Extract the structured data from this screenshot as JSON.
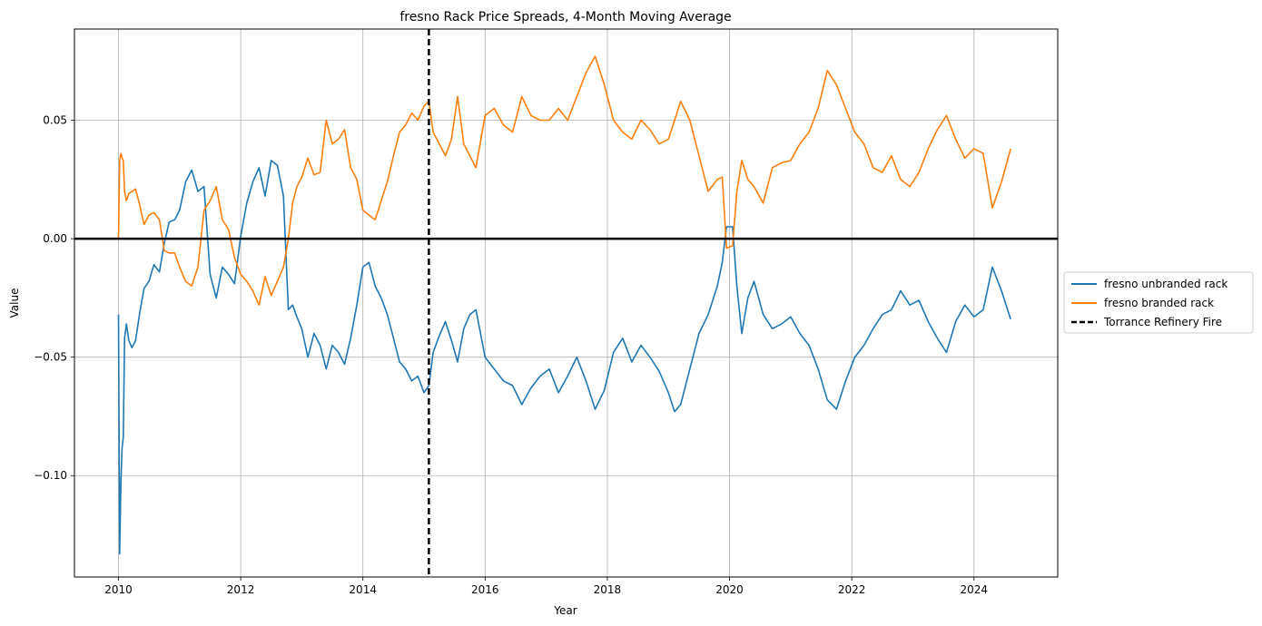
{
  "chart_data": {
    "type": "line",
    "title": "fresno Rack Price Spreads, 4-Month Moving Average",
    "xlabel": "Year",
    "ylabel": "Value",
    "xlim": [
      2009.28,
      2025.37
    ],
    "ylim": [
      -0.1428,
      0.0885
    ],
    "xticks": [
      2010,
      2012,
      2014,
      2016,
      2018,
      2020,
      2022,
      2024
    ],
    "xtick_labels": [
      "2010",
      "2012",
      "2014",
      "2016",
      "2018",
      "2020",
      "2022",
      "2024"
    ],
    "yticks": [
      -0.1,
      -0.05,
      0.0,
      0.05
    ],
    "ytick_labels": [
      "−0.10",
      "−0.05",
      "0.00",
      "0.05"
    ],
    "grid": true,
    "legend_position": "center-right-outside",
    "zero_line": 0,
    "vline": {
      "x": 2015.08,
      "name": "Torrance Refinery Fire",
      "color": "#000000",
      "style": "dashed"
    },
    "series": [
      {
        "name": "fresno unbranded rack",
        "color": "#1f77b4",
        "x": [
          2010.0,
          2010.02,
          2010.04,
          2010.06,
          2010.08,
          2010.1,
          2010.13,
          2010.17,
          2010.22,
          2010.28,
          2010.35,
          2010.42,
          2010.5,
          2010.58,
          2010.67,
          2010.75,
          2010.83,
          2010.92,
          2011.0,
          2011.1,
          2011.2,
          2011.3,
          2011.4,
          2011.5,
          2011.6,
          2011.7,
          2011.8,
          2011.9,
          2012.0,
          2012.1,
          2012.2,
          2012.3,
          2012.4,
          2012.5,
          2012.6,
          2012.7,
          2012.78,
          2012.85,
          2012.92,
          2013.0,
          2013.1,
          2013.2,
          2013.3,
          2013.4,
          2013.5,
          2013.6,
          2013.7,
          2013.8,
          2013.9,
          2014.0,
          2014.1,
          2014.2,
          2014.3,
          2014.4,
          2014.5,
          2014.6,
          2014.7,
          2014.8,
          2014.9,
          2015.0,
          2015.08,
          2015.15,
          2015.25,
          2015.35,
          2015.45,
          2015.55,
          2015.65,
          2015.75,
          2015.85,
          2016.0,
          2016.15,
          2016.3,
          2016.45,
          2016.6,
          2016.75,
          2016.9,
          2017.05,
          2017.2,
          2017.35,
          2017.5,
          2017.65,
          2017.8,
          2017.95,
          2018.1,
          2018.25,
          2018.4,
          2018.55,
          2018.7,
          2018.85,
          2019.0,
          2019.1,
          2019.2,
          2019.35,
          2019.5,
          2019.65,
          2019.8,
          2019.88,
          2019.95,
          2020.05,
          2020.12,
          2020.2,
          2020.3,
          2020.4,
          2020.55,
          2020.7,
          2020.85,
          2021.0,
          2021.15,
          2021.3,
          2021.45,
          2021.6,
          2021.75,
          2021.9,
          2022.05,
          2022.2,
          2022.35,
          2022.5,
          2022.65,
          2022.8,
          2022.95,
          2023.1,
          2023.25,
          2023.4,
          2023.55,
          2023.7,
          2023.85,
          2024.0,
          2024.15,
          2024.3,
          2024.45,
          2024.6
        ],
        "y": [
          -0.032,
          -0.133,
          -0.102,
          -0.088,
          -0.084,
          -0.042,
          -0.036,
          -0.043,
          -0.046,
          -0.043,
          -0.031,
          -0.021,
          -0.018,
          -0.011,
          -0.014,
          -0.002,
          0.007,
          0.008,
          0.012,
          0.024,
          0.029,
          0.02,
          0.022,
          -0.015,
          -0.025,
          -0.012,
          -0.015,
          -0.019,
          0.001,
          0.015,
          0.024,
          0.03,
          0.018,
          0.033,
          0.031,
          0.018,
          -0.03,
          -0.028,
          -0.033,
          -0.038,
          -0.05,
          -0.04,
          -0.045,
          -0.055,
          -0.045,
          -0.048,
          -0.053,
          -0.042,
          -0.028,
          -0.012,
          -0.01,
          -0.02,
          -0.025,
          -0.032,
          -0.042,
          -0.052,
          -0.055,
          -0.06,
          -0.058,
          -0.065,
          -0.062,
          -0.048,
          -0.041,
          -0.035,
          -0.043,
          -0.052,
          -0.038,
          -0.032,
          -0.03,
          -0.05,
          -0.055,
          -0.06,
          -0.062,
          -0.07,
          -0.063,
          -0.058,
          -0.055,
          -0.065,
          -0.058,
          -0.05,
          -0.06,
          -0.072,
          -0.064,
          -0.048,
          -0.042,
          -0.052,
          -0.045,
          -0.05,
          -0.056,
          -0.065,
          -0.073,
          -0.07,
          -0.055,
          -0.04,
          -0.032,
          -0.02,
          -0.01,
          0.005,
          0.005,
          -0.02,
          -0.04,
          -0.025,
          -0.018,
          -0.032,
          -0.038,
          -0.036,
          -0.033,
          -0.04,
          -0.045,
          -0.055,
          -0.068,
          -0.072,
          -0.06,
          -0.05,
          -0.045,
          -0.038,
          -0.032,
          -0.03,
          -0.022,
          -0.028,
          -0.026,
          -0.035,
          -0.042,
          -0.048,
          -0.035,
          -0.028,
          -0.033,
          -0.03,
          -0.012,
          -0.022,
          -0.034
        ]
      },
      {
        "name": "fresno branded rack",
        "color": "#ff7f0e",
        "x": [
          2010.0,
          2010.02,
          2010.04,
          2010.06,
          2010.08,
          2010.1,
          2010.13,
          2010.17,
          2010.22,
          2010.28,
          2010.35,
          2010.42,
          2010.5,
          2010.58,
          2010.67,
          2010.75,
          2010.83,
          2010.92,
          2011.0,
          2011.1,
          2011.2,
          2011.3,
          2011.4,
          2011.5,
          2011.6,
          2011.7,
          2011.8,
          2011.9,
          2012.0,
          2012.1,
          2012.2,
          2012.3,
          2012.4,
          2012.5,
          2012.6,
          2012.7,
          2012.78,
          2012.85,
          2012.92,
          2013.0,
          2013.1,
          2013.2,
          2013.3,
          2013.4,
          2013.5,
          2013.6,
          2013.7,
          2013.8,
          2013.9,
          2014.0,
          2014.1,
          2014.2,
          2014.3,
          2014.4,
          2014.5,
          2014.6,
          2014.7,
          2014.8,
          2014.9,
          2015.0,
          2015.08,
          2015.15,
          2015.25,
          2015.35,
          2015.45,
          2015.55,
          2015.65,
          2015.75,
          2015.85,
          2016.0,
          2016.15,
          2016.3,
          2016.45,
          2016.6,
          2016.75,
          2016.9,
          2017.05,
          2017.2,
          2017.35,
          2017.5,
          2017.65,
          2017.8,
          2017.95,
          2018.1,
          2018.25,
          2018.4,
          2018.55,
          2018.7,
          2018.85,
          2019.0,
          2019.1,
          2019.2,
          2019.35,
          2019.5,
          2019.65,
          2019.8,
          2019.88,
          2019.95,
          2020.05,
          2020.12,
          2020.2,
          2020.3,
          2020.4,
          2020.55,
          2020.7,
          2020.85,
          2021.0,
          2021.15,
          2021.3,
          2021.45,
          2021.6,
          2021.75,
          2021.9,
          2022.05,
          2022.2,
          2022.35,
          2022.5,
          2022.65,
          2022.8,
          2022.95,
          2023.1,
          2023.25,
          2023.4,
          2023.55,
          2023.7,
          2023.85,
          2024.0,
          2024.15,
          2024.3,
          2024.45,
          2024.6
        ],
        "y": [
          0.0,
          0.033,
          0.036,
          0.034,
          0.033,
          0.02,
          0.016,
          0.019,
          0.02,
          0.021,
          0.014,
          0.006,
          0.01,
          0.011,
          0.008,
          -0.005,
          -0.006,
          -0.006,
          -0.012,
          -0.018,
          -0.02,
          -0.012,
          0.012,
          0.016,
          0.022,
          0.008,
          0.004,
          -0.008,
          -0.015,
          -0.018,
          -0.022,
          -0.028,
          -0.016,
          -0.024,
          -0.018,
          -0.012,
          0.0,
          0.015,
          0.022,
          0.026,
          0.034,
          0.027,
          0.028,
          0.05,
          0.04,
          0.042,
          0.046,
          0.03,
          0.025,
          0.012,
          0.01,
          0.008,
          0.016,
          0.024,
          0.035,
          0.045,
          0.048,
          0.053,
          0.05,
          0.056,
          0.058,
          0.045,
          0.04,
          0.035,
          0.042,
          0.06,
          0.04,
          0.035,
          0.03,
          0.052,
          0.055,
          0.048,
          0.045,
          0.06,
          0.052,
          0.05,
          0.05,
          0.055,
          0.05,
          0.06,
          0.07,
          0.077,
          0.065,
          0.05,
          0.045,
          0.042,
          0.05,
          0.046,
          0.04,
          0.042,
          0.05,
          0.058,
          0.05,
          0.035,
          0.02,
          0.025,
          0.026,
          -0.004,
          -0.003,
          0.02,
          0.033,
          0.025,
          0.022,
          0.015,
          0.03,
          0.032,
          0.033,
          0.04,
          0.045,
          0.055,
          0.071,
          0.065,
          0.055,
          0.045,
          0.04,
          0.03,
          0.028,
          0.035,
          0.025,
          0.022,
          0.028,
          0.038,
          0.046,
          0.052,
          0.042,
          0.034,
          0.038,
          0.036,
          0.013,
          0.024,
          0.038
        ]
      }
    ]
  }
}
